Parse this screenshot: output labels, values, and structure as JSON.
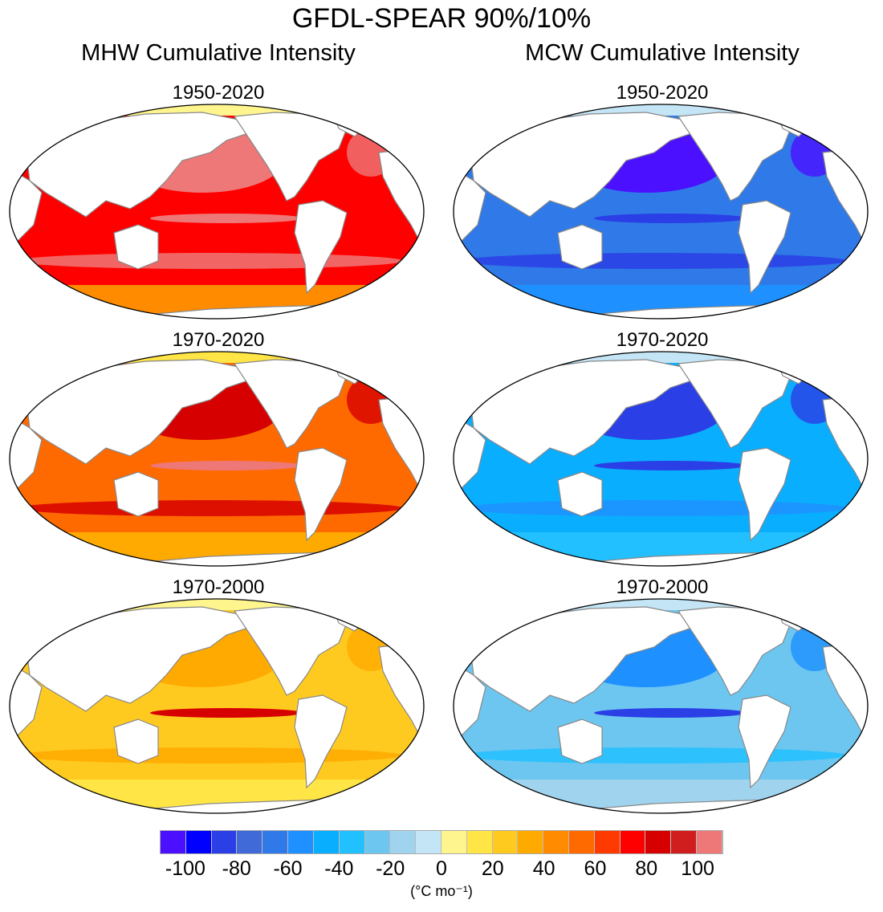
{
  "title": "GFDL-SPEAR 90%/10%",
  "columns": [
    {
      "title": "MHW Cumulative Intensity",
      "panels": [
        {
          "period": "1950-2020",
          "base": "#ff0000",
          "north": "#ee7777",
          "eq": "#ee7777",
          "south": "#ee7777",
          "edge": "#ff8c00",
          "pole": "#fff58f"
        },
        {
          "period": "1970-2020",
          "base": "#ff6a00",
          "north": "#d70000",
          "eq": "#ee7777",
          "south": "#d70000",
          "edge": "#ffaa00",
          "pole": "#ffe545"
        },
        {
          "period": "1970-2000",
          "base": "#ffca20",
          "north": "#ffaa00",
          "eq": "#d70000",
          "south": "#ffaa00",
          "edge": "#ffe545",
          "pole": "#fff58f"
        }
      ]
    },
    {
      "title": "MCW Cumulative Intensity",
      "panels": [
        {
          "period": "1950-2020",
          "base": "#2f7ae8",
          "north": "#4a10ff",
          "eq": "#2a3fe5",
          "south": "#2a3fe5",
          "edge": "#1e90ff",
          "pole": "#c4e5f5"
        },
        {
          "period": "1970-2020",
          "base": "#0aaeff",
          "north": "#2a3fe5",
          "eq": "#2a3fe5",
          "south": "#1e90ff",
          "edge": "#22c0ff",
          "pole": "#c4e5f5"
        },
        {
          "period": "1970-2000",
          "base": "#6cc6f0",
          "north": "#1e90ff",
          "eq": "#2a3fe5",
          "south": "#22c0ff",
          "edge": "#a0d3ee",
          "pole": "#c4e5f5"
        }
      ]
    }
  ],
  "colorbar": {
    "levels": [
      -100,
      -90,
      -80,
      -70,
      -60,
      -50,
      -40,
      -30,
      -20,
      -10,
      0,
      10,
      20,
      30,
      40,
      50,
      60,
      70,
      80,
      90,
      100
    ],
    "colors": [
      "#4a10ff",
      "#0000ff",
      "#2a3fe5",
      "#3f6ad8",
      "#2f7ae8",
      "#1e90ff",
      "#0aaeff",
      "#22c0ff",
      "#6cc6f0",
      "#a0d3ee",
      "#c4e5f5",
      "#fff58f",
      "#ffe545",
      "#ffca20",
      "#ffaa00",
      "#ff8c00",
      "#ff6a00",
      "#ff3a00",
      "#ff0000",
      "#d70000",
      "#d01e1e",
      "#ee7777"
    ],
    "tick_labels": [
      "-100",
      "-80",
      "-60",
      "-40",
      "-20",
      "0",
      "20",
      "40",
      "60",
      "80",
      "100"
    ],
    "units": "(°C mo⁻¹)"
  }
}
